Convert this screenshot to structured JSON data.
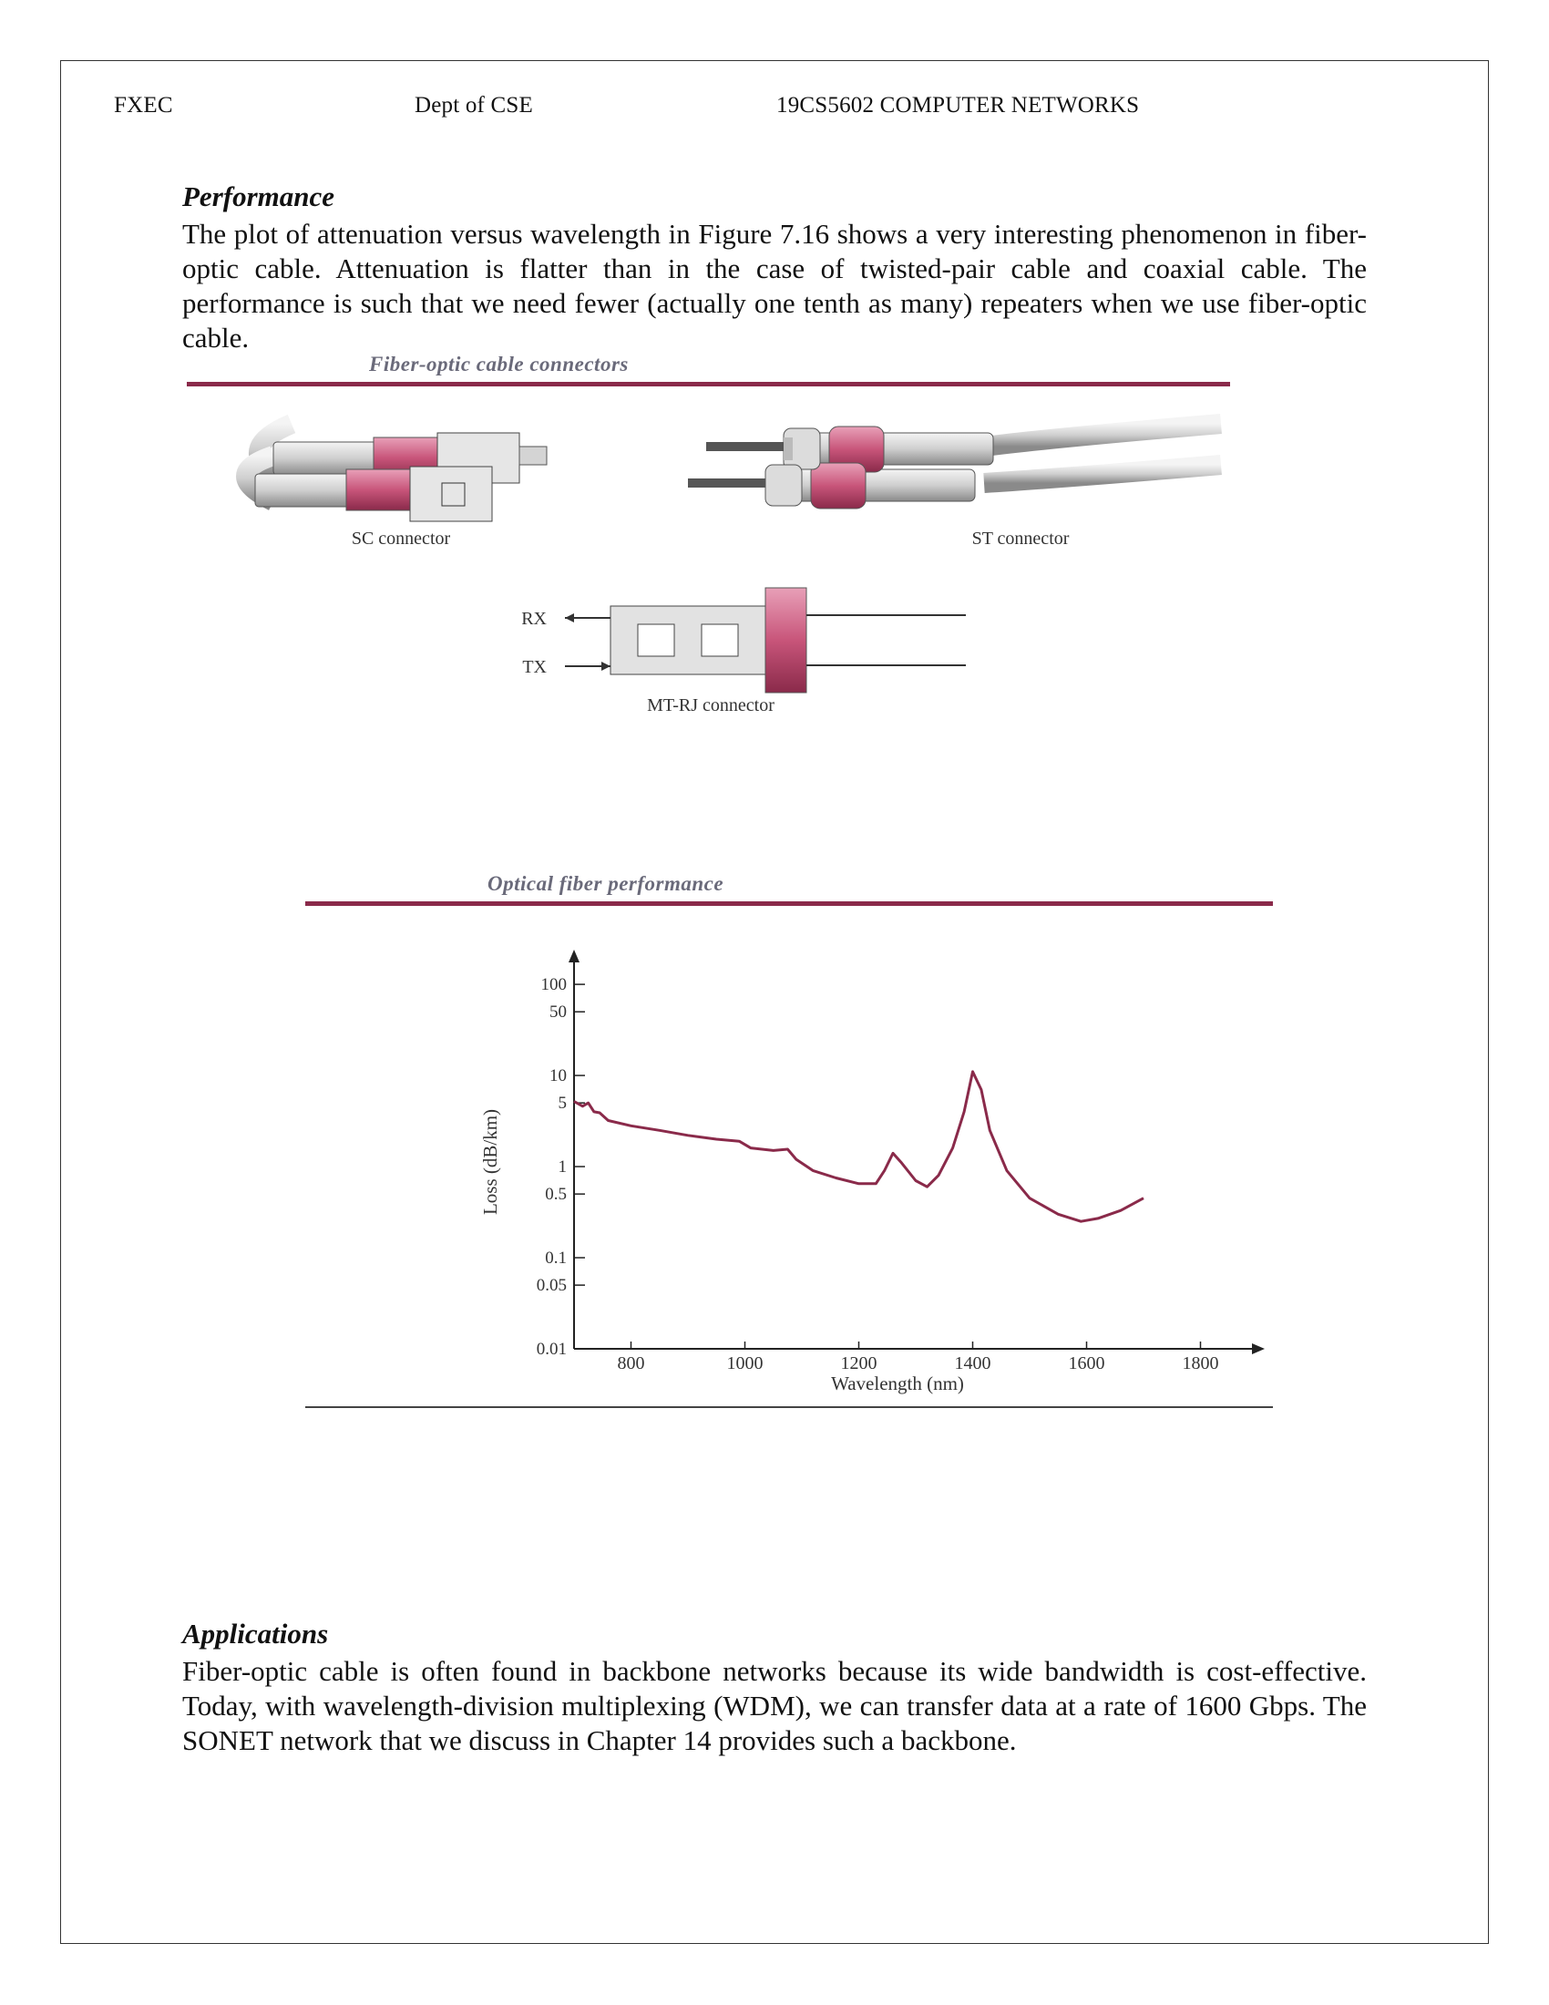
{
  "header": {
    "institution": "FXEC",
    "department": "Dept of CSE",
    "course": "19CS5602 COMPUTER NETWORKS"
  },
  "performance": {
    "title": "Performance",
    "body": "The plot of attenuation versus wavelength in Figure 7.16 shows a very interesting phenomenon in fiber-optic cable. Attenuation is flatter than in the case of twisted-pair cable and coaxial cable. The performance is such that we need fewer (actually one tenth as many) repeaters when we use fiber-optic cable."
  },
  "connectors_figure": {
    "caption": "Fiber-optic cable connectors",
    "sc_label": "SC connector",
    "st_label": "ST connector",
    "mtrj_label": "MT-RJ connector",
    "rx_label": "RX",
    "tx_label": "TX",
    "accent_color": "#c8557a"
  },
  "performance_figure": {
    "caption": "Optical fiber performance"
  },
  "chart_data": {
    "type": "line",
    "title": "",
    "xlabel": "Wavelength (nm)",
    "ylabel": "Loss (dB/km)",
    "y_scale": "log",
    "xlim": [
      700,
      1900
    ],
    "ylim": [
      0.01,
      200
    ],
    "x_ticks": [
      800,
      1000,
      1200,
      1400,
      1600,
      1800
    ],
    "y_ticks": [
      {
        "v": 100,
        "label": "100"
      },
      {
        "v": 50,
        "label": "50"
      },
      {
        "v": 10,
        "label": "10"
      },
      {
        "v": 5,
        "label": "5"
      },
      {
        "v": 1,
        "label": "1"
      },
      {
        "v": 0.5,
        "label": "0.5"
      },
      {
        "v": 0.1,
        "label": "0.1"
      },
      {
        "v": 0.05,
        "label": "0.05"
      },
      {
        "v": 0.01,
        "label": "0.01"
      }
    ],
    "series": [
      {
        "color": "#8a2a4a",
        "points": [
          [
            700,
            5.2
          ],
          [
            715,
            4.6
          ],
          [
            725,
            5.0
          ],
          [
            735,
            4.0
          ],
          [
            745,
            3.9
          ],
          [
            760,
            3.2
          ],
          [
            800,
            2.8
          ],
          [
            850,
            2.5
          ],
          [
            900,
            2.2
          ],
          [
            950,
            2.0
          ],
          [
            990,
            1.9
          ],
          [
            1010,
            1.6
          ],
          [
            1050,
            1.5
          ],
          [
            1075,
            1.55
          ],
          [
            1090,
            1.2
          ],
          [
            1120,
            0.9
          ],
          [
            1160,
            0.75
          ],
          [
            1200,
            0.65
          ],
          [
            1230,
            0.65
          ],
          [
            1245,
            0.9
          ],
          [
            1260,
            1.4
          ],
          [
            1275,
            1.1
          ],
          [
            1300,
            0.7
          ],
          [
            1320,
            0.6
          ],
          [
            1340,
            0.8
          ],
          [
            1365,
            1.6
          ],
          [
            1385,
            4.0
          ],
          [
            1400,
            11.0
          ],
          [
            1415,
            7.0
          ],
          [
            1430,
            2.5
          ],
          [
            1460,
            0.9
          ],
          [
            1500,
            0.45
          ],
          [
            1550,
            0.3
          ],
          [
            1590,
            0.25
          ],
          [
            1620,
            0.27
          ],
          [
            1660,
            0.33
          ],
          [
            1700,
            0.45
          ]
        ]
      }
    ]
  },
  "applications": {
    "title": "Applications",
    "body": "Fiber-optic cable is often found in backbone networks because its wide bandwidth is cost-effective. Today, with wavelength-division multiplexing (WDM), we can transfer data at  a rate of 1600 Gbps. The SONET network that we discuss in Chapter 14 provides such a backbone."
  }
}
